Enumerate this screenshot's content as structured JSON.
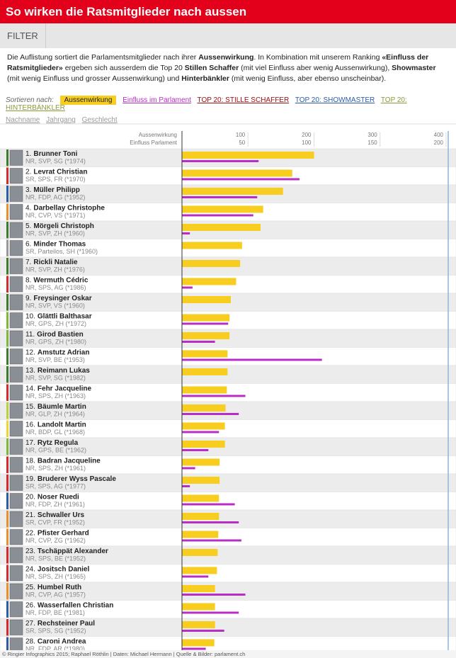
{
  "header": {
    "title": "So wirken die Ratsmitglieder nach aussen"
  },
  "filter": "FILTER",
  "intro": {
    "parts": [
      {
        "text": "Die Auflistung sortiert die Parlamentsmitglieder nach ihrer ",
        "bold": false
      },
      {
        "text": "Aussenwirkung",
        "bold": true
      },
      {
        "text": ". In Kombination mit unserem Ranking ",
        "bold": false
      },
      {
        "text": "«Einfluss der Ratsmitglieder»",
        "bold": true
      },
      {
        "text": " ergeben sich ausserdem die Top 20 ",
        "bold": false
      },
      {
        "text": "Stillen Schaffer",
        "bold": true
      },
      {
        "text": " (mit viel Einfluss aber wenig Aussenwirkung), ",
        "bold": false
      },
      {
        "text": "Showmaster",
        "bold": true
      },
      {
        "text": " (mit wenig Einfluss und grosser Aussenwirkung) und ",
        "bold": false
      },
      {
        "text": "Hinterbänkler",
        "bold": true
      },
      {
        "text": " (mit wenig Einfluss, aber ebenso unscheinbar).",
        "bold": false
      }
    ]
  },
  "sort": {
    "label": "Sortieren nach:",
    "top20": [
      "TOP 20: STILLE SCHAFFER",
      "TOP 20: SHOWMASTER",
      "TOP 20: HINTERBÄNKLER"
    ],
    "other": [
      "Nachname",
      "Jahrgang",
      "Geschlecht"
    ]
  },
  "chart_data": {
    "type": "bar",
    "orientation": "horizontal",
    "xlabel": "Aussenwirkung",
    "x2label": "Einfluss Parlament",
    "xlim": [
      0,
      400
    ],
    "xticks": [
      100,
      200,
      300,
      400
    ],
    "x2lim": [
      0,
      200
    ],
    "x2ticks": [
      50,
      100,
      150,
      200
    ],
    "ranks": [
      "1.",
      "2.",
      "3.",
      "4.",
      "5.",
      "6.",
      "7.",
      "8.",
      "9.",
      "10.",
      "11.",
      "12.",
      "13.",
      "14.",
      "15.",
      "16.",
      "17.",
      "18.",
      "19.",
      "20.",
      "21.",
      "22.",
      "23.",
      "24.",
      "25.",
      "26.",
      "27.",
      "28."
    ],
    "categories": [
      "Brunner Toni",
      "Levrat Christian",
      "Müller Philipp",
      "Darbellay Christophe",
      "Mörgeli Christoph",
      "Minder Thomas",
      "Rickli Natalie",
      "Wermuth Cédric",
      "Freysinger Oskar",
      "Glättli Balthasar",
      "Girod Bastien",
      "Amstutz Adrian",
      "Reimann Lukas",
      "Fehr Jacqueline",
      "Bäumle Martin",
      "Landolt Martin",
      "Rytz Regula",
      "Badran Jacqueline",
      "Bruderer Wyss Pascale",
      "Noser Ruedi",
      "Schwaller Urs",
      "Pfister Gerhard",
      "Tschäppät Alexander",
      "Jositsch Daniel",
      "Humbel Ruth",
      "Wasserfallen Christian",
      "Rechsteiner Paul",
      "Caroni Andrea"
    ],
    "details": [
      "NR, SVP, SG (*1974)",
      "SR, SPS, FR (*1970)",
      "NR, FDP, AG (*1952)",
      "NR, CVP, VS (*1971)",
      "NR, SVP, ZH (*1960)",
      "SR, Parteilos, SH (*1960)",
      "NR, SVP, ZH (*1976)",
      "NR, SPS, AG (*1986)",
      "NR, SVP, VS (*1960)",
      "NR, GPS, ZH (*1972)",
      "NR, GPS, ZH (*1980)",
      "NR, SVP, BE (*1953)",
      "NR, SVP, SG (*1982)",
      "NR, SPS, ZH (*1963)",
      "NR, GLP, ZH (*1964)",
      "NR, BDP, GL (*1968)",
      "NR, GPS, BE (*1962)",
      "NR, SPS, ZH (*1961)",
      "SR, SPS, AG (*1977)",
      "NR, FDP, ZH (*1961)",
      "SR, CVP, FR (*1952)",
      "NR, CVP, ZG (*1962)",
      "NR, SPS, BE (*1952)",
      "NR, SPS, ZH (*1965)",
      "NR, CVP, AG (*1957)",
      "NR, FDP, BE (*1981)",
      "SR, SPS, SG (*1952)",
      "NR, FDP, AR (*1980)"
    ],
    "stripe_colors": [
      "#3b7d2b",
      "#d42a2a",
      "#2b5ca8",
      "#e8902c",
      "#3b7d2b",
      "#999999",
      "#3b7d2b",
      "#d42a2a",
      "#3b7d2b",
      "#7cb83a",
      "#7cb83a",
      "#3b7d2b",
      "#3b7d2b",
      "#d42a2a",
      "#b8d23a",
      "#f0d430",
      "#7cb83a",
      "#d42a2a",
      "#d42a2a",
      "#2b5ca8",
      "#e8902c",
      "#e8902c",
      "#d42a2a",
      "#d42a2a",
      "#e8902c",
      "#2b5ca8",
      "#d42a2a",
      "#2b5ca8"
    ],
    "series": [
      {
        "name": "Aussenwirkung",
        "color": "#f7cd1f",
        "values": [
          200,
          167,
          153,
          123,
          119,
          91,
          88,
          82,
          74,
          72,
          72,
          69,
          69,
          68,
          66,
          65,
          65,
          57,
          57,
          56,
          56,
          55,
          54,
          53,
          50,
          50,
          50,
          49
        ]
      },
      {
        "name": "Einfluss im Parlament",
        "color": "#b82ec4",
        "axis": "x2",
        "values": [
          58,
          89,
          57,
          54,
          6,
          0,
          0,
          8,
          0,
          35,
          25,
          106,
          0,
          48,
          43,
          28,
          20,
          10,
          6,
          40,
          43,
          45,
          0,
          20,
          48,
          43,
          32,
          18
        ]
      }
    ]
  },
  "footer": "© Ringier Infographics 2015; Raphael Röthlin | Daten: Michael Hermann | Quelle & Bilder: parlament.ch"
}
